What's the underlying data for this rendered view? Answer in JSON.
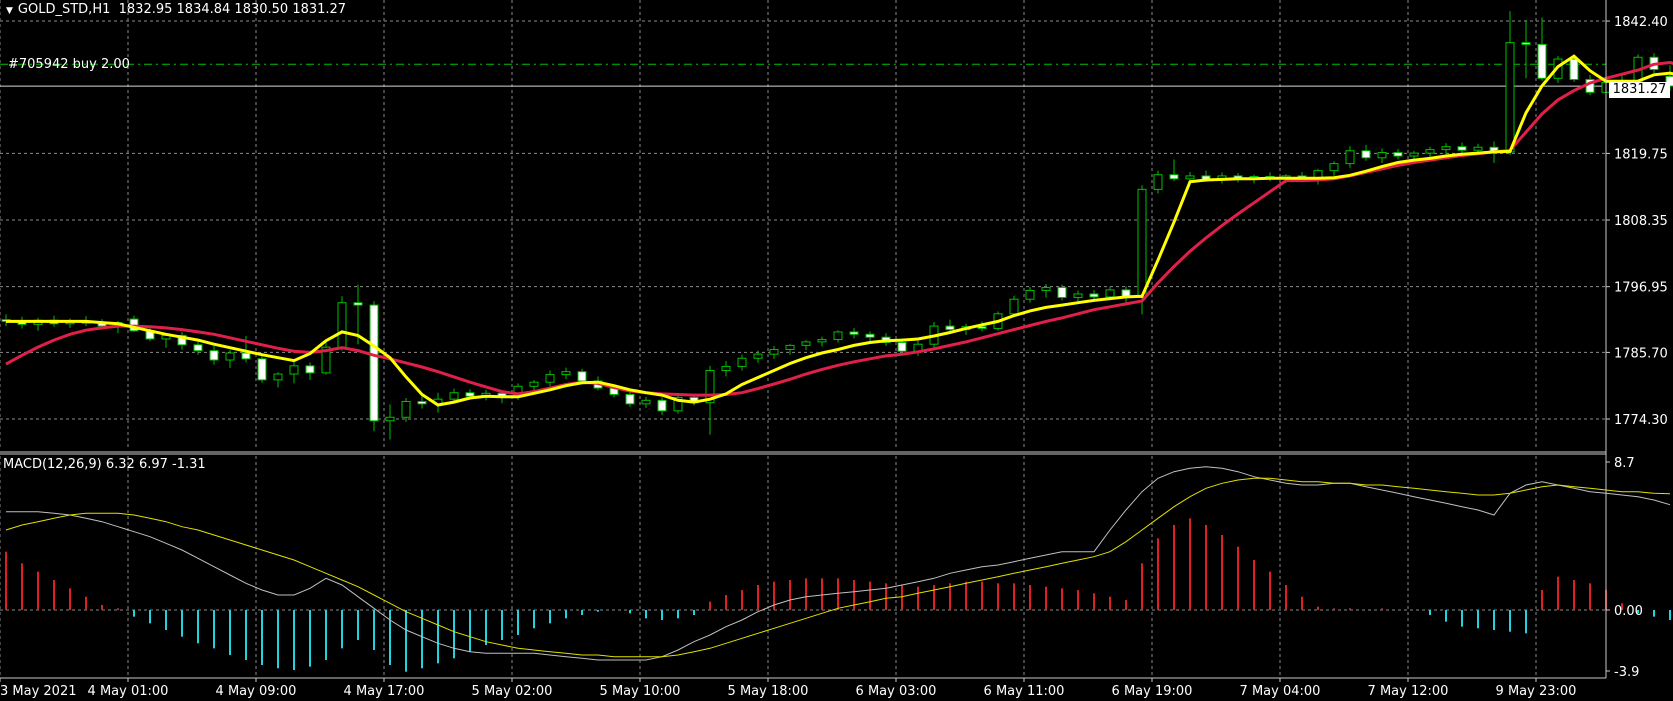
{
  "header": {
    "symbol": "GOLD_STD,H1",
    "ohlc": "1832.95 1834.84 1830.50 1831.27"
  },
  "order_label": "#705942 buy 2.00",
  "current_price_tag": "1831.27",
  "colors": {
    "background": "#000000",
    "grid": "#8a8a8a",
    "bull_candle": "#00c000",
    "bear_candle_body": "#ffffff",
    "fast_ma": "#ffff00",
    "slow_ma": "#e0204a",
    "macd_line": "#c0c0c0",
    "signal_line": "#e0e000",
    "hist_positive": "#e02020",
    "hist_negative": "#22d3e0",
    "order_line": "#00c000"
  },
  "price_axis": {
    "labels": [
      "1842.40",
      "1831.27",
      "1819.75",
      "1808.35",
      "1796.95",
      "1785.70",
      "1774.30"
    ]
  },
  "macd_panel": {
    "title": "MACD(12,26,9) 6.32 6.97 -1.31",
    "axis_labels": [
      "8.7",
      "0.00",
      "-3.9"
    ]
  },
  "time_axis": {
    "labels": [
      "3 May 2021",
      "4 May 01:00",
      "4 May 09:00",
      "4 May 17:00",
      "5 May 02:00",
      "5 May 10:00",
      "5 May 18:00",
      "6 May 03:00",
      "6 May 11:00",
      "6 May 19:00",
      "7 May 04:00",
      "7 May 12:00",
      "9 May 23:00"
    ]
  },
  "chart_data": {
    "type": "candlestick",
    "symbol": "GOLD_STD",
    "timeframe": "H1",
    "price_range": [
      1769,
      1846
    ],
    "order_level": 1835.0,
    "candles": [
      {
        "o": 1791.3,
        "h": 1792.2,
        "l": 1790.2,
        "c": 1791.0
      },
      {
        "o": 1791.0,
        "h": 1791.8,
        "l": 1789.8,
        "c": 1790.5
      },
      {
        "o": 1790.5,
        "h": 1791.6,
        "l": 1789.4,
        "c": 1791.2
      },
      {
        "o": 1791.2,
        "h": 1792.0,
        "l": 1790.1,
        "c": 1790.6
      },
      {
        "o": 1790.6,
        "h": 1791.5,
        "l": 1789.9,
        "c": 1791.1
      },
      {
        "o": 1791.1,
        "h": 1791.9,
        "l": 1790.2,
        "c": 1790.7
      },
      {
        "o": 1790.7,
        "h": 1791.4,
        "l": 1789.6,
        "c": 1790.2
      },
      {
        "o": 1790.2,
        "h": 1791.1,
        "l": 1789.0,
        "c": 1790.8
      },
      {
        "o": 1791.4,
        "h": 1792.0,
        "l": 1789.2,
        "c": 1789.4
      },
      {
        "o": 1789.4,
        "h": 1790.1,
        "l": 1787.6,
        "c": 1788.0
      },
      {
        "o": 1788.0,
        "h": 1789.0,
        "l": 1786.5,
        "c": 1788.6
      },
      {
        "o": 1788.6,
        "h": 1789.2,
        "l": 1786.2,
        "c": 1787.0
      },
      {
        "o": 1787.0,
        "h": 1787.9,
        "l": 1785.3,
        "c": 1786.0
      },
      {
        "o": 1786.0,
        "h": 1786.8,
        "l": 1783.6,
        "c": 1784.4
      },
      {
        "o": 1784.4,
        "h": 1786.1,
        "l": 1783.0,
        "c": 1785.6
      },
      {
        "o": 1785.6,
        "h": 1788.5,
        "l": 1784.0,
        "c": 1784.6
      },
      {
        "o": 1784.6,
        "h": 1785.2,
        "l": 1780.5,
        "c": 1781.0
      },
      {
        "o": 1781.0,
        "h": 1782.3,
        "l": 1779.7,
        "c": 1782.0
      },
      {
        "o": 1782.0,
        "h": 1784.1,
        "l": 1780.4,
        "c": 1783.4
      },
      {
        "o": 1783.4,
        "h": 1784.0,
        "l": 1781.0,
        "c": 1782.2
      },
      {
        "o": 1782.2,
        "h": 1787.4,
        "l": 1781.9,
        "c": 1786.6
      },
      {
        "o": 1786.6,
        "h": 1795.3,
        "l": 1786.0,
        "c": 1794.2
      },
      {
        "o": 1794.2,
        "h": 1797.3,
        "l": 1787.1,
        "c": 1793.8
      },
      {
        "o": 1793.8,
        "h": 1794.5,
        "l": 1772.2,
        "c": 1774.0
      },
      {
        "o": 1774.0,
        "h": 1776.8,
        "l": 1770.8,
        "c": 1774.6
      },
      {
        "o": 1774.6,
        "h": 1777.9,
        "l": 1773.8,
        "c": 1777.3
      },
      {
        "o": 1777.3,
        "h": 1778.2,
        "l": 1776.1,
        "c": 1776.9
      },
      {
        "o": 1776.9,
        "h": 1778.8,
        "l": 1775.4,
        "c": 1777.7
      },
      {
        "o": 1777.7,
        "h": 1779.5,
        "l": 1777.1,
        "c": 1778.8
      },
      {
        "o": 1778.8,
        "h": 1779.4,
        "l": 1777.6,
        "c": 1778.2
      },
      {
        "o": 1778.2,
        "h": 1779.3,
        "l": 1777.5,
        "c": 1778.7
      },
      {
        "o": 1778.7,
        "h": 1779.2,
        "l": 1777.0,
        "c": 1778.1
      },
      {
        "o": 1778.1,
        "h": 1780.4,
        "l": 1777.6,
        "c": 1779.9
      },
      {
        "o": 1779.9,
        "h": 1781.0,
        "l": 1778.7,
        "c": 1780.6
      },
      {
        "o": 1780.6,
        "h": 1782.6,
        "l": 1779.9,
        "c": 1781.9
      },
      {
        "o": 1781.9,
        "h": 1783.1,
        "l": 1781.1,
        "c": 1782.4
      },
      {
        "o": 1782.4,
        "h": 1782.9,
        "l": 1780.3,
        "c": 1780.8
      },
      {
        "o": 1780.8,
        "h": 1781.6,
        "l": 1779.2,
        "c": 1779.6
      },
      {
        "o": 1779.6,
        "h": 1780.1,
        "l": 1778.0,
        "c": 1778.5
      },
      {
        "o": 1778.5,
        "h": 1779.0,
        "l": 1776.4,
        "c": 1776.9
      },
      {
        "o": 1776.9,
        "h": 1778.1,
        "l": 1776.2,
        "c": 1777.5
      },
      {
        "o": 1777.5,
        "h": 1778.0,
        "l": 1775.0,
        "c": 1775.7
      },
      {
        "o": 1775.7,
        "h": 1778.6,
        "l": 1775.2,
        "c": 1778.0
      },
      {
        "o": 1778.0,
        "h": 1778.6,
        "l": 1776.6,
        "c": 1777.1
      },
      {
        "o": 1777.1,
        "h": 1783.4,
        "l": 1771.6,
        "c": 1782.6
      },
      {
        "o": 1782.6,
        "h": 1784.2,
        "l": 1781.6,
        "c": 1783.3
      },
      {
        "o": 1783.3,
        "h": 1785.3,
        "l": 1782.6,
        "c": 1784.7
      },
      {
        "o": 1784.7,
        "h": 1786.0,
        "l": 1783.9,
        "c": 1785.4
      },
      {
        "o": 1785.4,
        "h": 1786.8,
        "l": 1784.6,
        "c": 1786.2
      },
      {
        "o": 1786.2,
        "h": 1787.1,
        "l": 1785.3,
        "c": 1786.9
      },
      {
        "o": 1786.9,
        "h": 1787.8,
        "l": 1786.1,
        "c": 1787.5
      },
      {
        "o": 1787.5,
        "h": 1788.4,
        "l": 1786.7,
        "c": 1787.9
      },
      {
        "o": 1787.9,
        "h": 1789.5,
        "l": 1787.4,
        "c": 1789.2
      },
      {
        "o": 1789.2,
        "h": 1789.9,
        "l": 1788.1,
        "c": 1788.8
      },
      {
        "o": 1788.8,
        "h": 1789.3,
        "l": 1787.6,
        "c": 1788.3
      },
      {
        "o": 1788.3,
        "h": 1789.0,
        "l": 1786.8,
        "c": 1787.4
      },
      {
        "o": 1787.4,
        "h": 1788.1,
        "l": 1785.4,
        "c": 1785.9
      },
      {
        "o": 1785.9,
        "h": 1787.7,
        "l": 1785.1,
        "c": 1787.1
      },
      {
        "o": 1787.1,
        "h": 1790.9,
        "l": 1786.4,
        "c": 1790.2
      },
      {
        "o": 1790.2,
        "h": 1791.3,
        "l": 1789.0,
        "c": 1789.6
      },
      {
        "o": 1789.6,
        "h": 1790.6,
        "l": 1788.7,
        "c": 1790.1
      },
      {
        "o": 1790.1,
        "h": 1791.0,
        "l": 1789.3,
        "c": 1789.8
      },
      {
        "o": 1789.8,
        "h": 1792.7,
        "l": 1789.4,
        "c": 1792.3
      },
      {
        "o": 1792.3,
        "h": 1795.4,
        "l": 1791.9,
        "c": 1794.8
      },
      {
        "o": 1794.8,
        "h": 1796.9,
        "l": 1794.2,
        "c": 1796.3
      },
      {
        "o": 1796.3,
        "h": 1797.4,
        "l": 1795.1,
        "c": 1796.8
      },
      {
        "o": 1796.8,
        "h": 1797.3,
        "l": 1794.6,
        "c": 1795.1
      },
      {
        "o": 1795.1,
        "h": 1796.3,
        "l": 1794.2,
        "c": 1795.7
      },
      {
        "o": 1795.7,
        "h": 1796.4,
        "l": 1794.6,
        "c": 1795.2
      },
      {
        "o": 1795.2,
        "h": 1797.0,
        "l": 1794.6,
        "c": 1796.4
      },
      {
        "o": 1796.4,
        "h": 1797.0,
        "l": 1794.1,
        "c": 1795.1
      },
      {
        "o": 1795.1,
        "h": 1814.3,
        "l": 1792.2,
        "c": 1813.6
      },
      {
        "o": 1813.6,
        "h": 1816.8,
        "l": 1812.9,
        "c": 1816.1
      },
      {
        "o": 1816.1,
        "h": 1818.7,
        "l": 1815.0,
        "c": 1815.4
      },
      {
        "o": 1815.4,
        "h": 1816.6,
        "l": 1814.4,
        "c": 1815.9
      },
      {
        "o": 1815.9,
        "h": 1816.8,
        "l": 1814.9,
        "c": 1815.3
      },
      {
        "o": 1815.3,
        "h": 1816.5,
        "l": 1814.6,
        "c": 1815.9
      },
      {
        "o": 1815.9,
        "h": 1816.4,
        "l": 1814.8,
        "c": 1815.4
      },
      {
        "o": 1815.4,
        "h": 1816.1,
        "l": 1814.6,
        "c": 1815.8
      },
      {
        "o": 1815.8,
        "h": 1816.5,
        "l": 1815.0,
        "c": 1815.4
      },
      {
        "o": 1815.4,
        "h": 1816.2,
        "l": 1814.7,
        "c": 1815.9
      },
      {
        "o": 1815.9,
        "h": 1816.6,
        "l": 1815.2,
        "c": 1815.6
      },
      {
        "o": 1815.6,
        "h": 1817.1,
        "l": 1814.4,
        "c": 1816.8
      },
      {
        "o": 1816.8,
        "h": 1818.4,
        "l": 1815.9,
        "c": 1818.0
      },
      {
        "o": 1818.0,
        "h": 1821.0,
        "l": 1817.3,
        "c": 1820.2
      },
      {
        "o": 1820.2,
        "h": 1821.2,
        "l": 1818.5,
        "c": 1819.0
      },
      {
        "o": 1819.0,
        "h": 1820.6,
        "l": 1818.1,
        "c": 1819.9
      },
      {
        "o": 1819.9,
        "h": 1820.5,
        "l": 1818.7,
        "c": 1819.3
      },
      {
        "o": 1819.3,
        "h": 1820.2,
        "l": 1818.2,
        "c": 1819.8
      },
      {
        "o": 1819.8,
        "h": 1820.9,
        "l": 1818.9,
        "c": 1820.4
      },
      {
        "o": 1820.4,
        "h": 1821.5,
        "l": 1819.6,
        "c": 1820.9
      },
      {
        "o": 1820.9,
        "h": 1821.6,
        "l": 1819.8,
        "c": 1820.3
      },
      {
        "o": 1820.3,
        "h": 1821.4,
        "l": 1819.5,
        "c": 1820.8
      },
      {
        "o": 1820.8,
        "h": 1821.8,
        "l": 1818.1,
        "c": 1820.0
      },
      {
        "o": 1820.0,
        "h": 1844.1,
        "l": 1819.5,
        "c": 1838.7
      },
      {
        "o": 1838.7,
        "h": 1842.6,
        "l": 1832.6,
        "c": 1838.4
      },
      {
        "o": 1838.4,
        "h": 1843.0,
        "l": 1832.2,
        "c": 1832.6
      },
      {
        "o": 1832.6,
        "h": 1836.4,
        "l": 1831.8,
        "c": 1835.9
      },
      {
        "o": 1835.9,
        "h": 1836.6,
        "l": 1832.0,
        "c": 1832.4
      },
      {
        "o": 1832.4,
        "h": 1833.2,
        "l": 1829.7,
        "c": 1830.2
      },
      {
        "o": 1830.2,
        "h": 1832.6,
        "l": 1829.4,
        "c": 1831.9
      },
      {
        "o": 1831.9,
        "h": 1833.3,
        "l": 1830.6,
        "c": 1831.0
      },
      {
        "o": 1831.0,
        "h": 1836.7,
        "l": 1830.4,
        "c": 1836.2
      },
      {
        "o": 1836.2,
        "h": 1836.9,
        "l": 1833.5,
        "c": 1834.1
      },
      {
        "o": 1832.95,
        "h": 1834.84,
        "l": 1830.5,
        "c": 1831.27
      }
    ],
    "ma_fast": [
      1791,
      1791,
      1791,
      1791,
      1791,
      1791,
      1790.8,
      1790.6,
      1790,
      1789.4,
      1788.8,
      1788.3,
      1787.8,
      1787.1,
      1786.5,
      1785.9,
      1785.3,
      1784.8,
      1784.3,
      1785.5,
      1787.7,
      1789.2,
      1788.6,
      1786.8,
      1784.8,
      1781.5,
      1778.5,
      1776.7,
      1777.2,
      1777.9,
      1778.2,
      1778.1,
      1778.1,
      1778.7,
      1779.3,
      1780,
      1780.5,
      1780.6,
      1780,
      1779.3,
      1778.8,
      1778.4,
      1777.5,
      1777.2,
      1777.7,
      1778.6,
      1780.2,
      1781.4,
      1782.6,
      1783.8,
      1784.8,
      1785.6,
      1786.2,
      1786.9,
      1787.4,
      1787.7,
      1787.8,
      1788,
      1788.5,
      1789.1,
      1789.8,
      1790.4,
      1791,
      1792,
      1792.8,
      1793.4,
      1793.8,
      1794.2,
      1794.6,
      1794.9,
      1795.2,
      1795.3,
      1801.5,
      1808,
      1814.9,
      1815.2,
      1815.3,
      1815.4,
      1815.4,
      1815.5,
      1815.5,
      1815.5,
      1815.5,
      1815.6,
      1816,
      1816.7,
      1817.5,
      1818.2,
      1818.6,
      1818.9,
      1819.3,
      1819.6,
      1819.8,
      1820,
      1820.1,
      1826.7,
      1831.3,
      1834.6,
      1836.4,
      1833.9,
      1832.1,
      1832.1,
      1832.1,
      1833.2,
      1833.5,
      1832.8
    ],
    "ma_slow": [
      1783.7,
      1785.2,
      1786.6,
      1787.8,
      1788.8,
      1789.5,
      1789.9,
      1790.2,
      1790.2,
      1790.1,
      1789.9,
      1789.6,
      1789.2,
      1788.8,
      1788.2,
      1787.6,
      1787,
      1786.4,
      1785.9,
      1785.7,
      1786,
      1786.5,
      1786,
      1785.2,
      1784.6,
      1783.9,
      1783.2,
      1782.4,
      1781.5,
      1780.6,
      1779.8,
      1779,
      1778.6,
      1779,
      1779.6,
      1780.2,
      1780.6,
      1780.4,
      1779.7,
      1779.1,
      1778.8,
      1778.6,
      1778.5,
      1778.4,
      1778.4,
      1778.5,
      1778.8,
      1779.5,
      1780.3,
      1781.1,
      1782,
      1782.8,
      1783.5,
      1784.1,
      1784.6,
      1785.1,
      1785.4,
      1785.8,
      1786.3,
      1786.9,
      1787.5,
      1788.2,
      1788.9,
      1789.6,
      1790.3,
      1791,
      1791.6,
      1792.3,
      1793,
      1793.5,
      1794,
      1794.5,
      1797.6,
      1800.4,
      1803,
      1805.3,
      1807.4,
      1809.4,
      1811.3,
      1813.2,
      1815.1,
      1815.1,
      1815.2,
      1815.4,
      1815.9,
      1816.5,
      1817.1,
      1817.7,
      1818.2,
      1818.6,
      1819,
      1819.4,
      1819.7,
      1820,
      1820.3,
      1823.4,
      1826.5,
      1828.9,
      1830.5,
      1831.8,
      1832.6,
      1833.3,
      1834,
      1835,
      1835.3,
      1834.6
    ],
    "macd": {
      "params": [
        12,
        26,
        9
      ],
      "current": {
        "macd": 6.32,
        "signal": 6.97,
        "histogram": -1.31
      },
      "range": [
        -3.9,
        8.7
      ],
      "histogram": [
        3.5,
        2.8,
        2.3,
        1.8,
        1.3,
        0.8,
        0.3,
        0.1,
        -0.4,
        -0.8,
        -1.2,
        -1.6,
        -2,
        -2.3,
        -2.7,
        -3,
        -3.3,
        -3.5,
        -3.6,
        -3.4,
        -3,
        -2.3,
        -1.8,
        -2.4,
        -3.3,
        -3.7,
        -3.5,
        -3.2,
        -2.9,
        -2.5,
        -2.1,
        -1.8,
        -1.5,
        -1.1,
        -0.8,
        -0.5,
        -0.3,
        -0.1,
        0,
        -0.2,
        -0.5,
        -0.6,
        -0.5,
        -0.3,
        0.5,
        0.9,
        1.2,
        1.5,
        1.7,
        1.8,
        1.9,
        1.9,
        1.9,
        1.8,
        1.7,
        1.6,
        1.5,
        1.4,
        1.5,
        1.6,
        1.7,
        1.7,
        1.6,
        1.6,
        1.5,
        1.4,
        1.3,
        1.2,
        1.0,
        0.8,
        0.6,
        2.8,
        4.3,
        5.1,
        5.5,
        5.1,
        4.5,
        3.8,
        3.0,
        2.3,
        1.5,
        0.8,
        0.2,
        0.1,
        0.1,
        0,
        0.1,
        0,
        0,
        -0.3,
        -0.7,
        -1.0,
        -1.1,
        -1.2,
        -1.3,
        -1.4,
        1.2,
        2.0,
        1.8,
        1.6,
        1.2,
        0.4,
        -0.2,
        -0.4,
        -0.6,
        -0.9,
        -1.31
      ],
      "macd_line": [
        5.9,
        5.9,
        5.9,
        5.8,
        5.7,
        5.5,
        5.3,
        5.0,
        4.7,
        4.4,
        4.0,
        3.6,
        3.1,
        2.6,
        2.1,
        1.6,
        1.2,
        0.9,
        0.9,
        1.3,
        1.9,
        1.5,
        0.8,
        0.1,
        -0.6,
        -1.2,
        -1.6,
        -2.0,
        -2.3,
        -2.5,
        -2.6,
        -2.6,
        -2.6,
        -2.6,
        -2.7,
        -2.8,
        -2.9,
        -3.0,
        -3.0,
        -3.0,
        -3.0,
        -2.8,
        -2.4,
        -1.9,
        -1.5,
        -1.0,
        -0.6,
        -0.1,
        0.3,
        0.6,
        0.8,
        0.9,
        1.0,
        1.1,
        1.2,
        1.3,
        1.5,
        1.7,
        1.9,
        2.2,
        2.4,
        2.6,
        2.7,
        2.9,
        3.1,
        3.3,
        3.5,
        3.5,
        3.5,
        4.8,
        6.0,
        7.1,
        7.9,
        8.3,
        8.5,
        8.6,
        8.5,
        8.3,
        8.0,
        7.8,
        7.6,
        7.5,
        7.5,
        7.6,
        7.6,
        7.4,
        7.2,
        7.0,
        6.8,
        6.6,
        6.4,
        6.2,
        6.0,
        5.7,
        7.0,
        7.5,
        7.7,
        7.5,
        7.3,
        7.1,
        7.0,
        6.9,
        6.8,
        6.6,
        6.32
      ],
      "signal_line": [
        4.8,
        5.1,
        5.3,
        5.5,
        5.7,
        5.8,
        5.8,
        5.8,
        5.7,
        5.5,
        5.3,
        5.0,
        4.8,
        4.5,
        4.2,
        3.9,
        3.6,
        3.3,
        3.0,
        2.6,
        2.2,
        1.8,
        1.4,
        0.9,
        0.4,
        -0.1,
        -0.5,
        -0.9,
        -1.3,
        -1.6,
        -1.9,
        -2.1,
        -2.3,
        -2.4,
        -2.5,
        -2.6,
        -2.7,
        -2.7,
        -2.8,
        -2.8,
        -2.8,
        -2.8,
        -2.7,
        -2.5,
        -2.3,
        -2.0,
        -1.7,
        -1.4,
        -1.1,
        -0.8,
        -0.5,
        -0.2,
        0.1,
        0.3,
        0.5,
        0.7,
        0.8,
        1.0,
        1.2,
        1.4,
        1.6,
        1.8,
        2.0,
        2.2,
        2.4,
        2.6,
        2.8,
        3.0,
        3.2,
        3.5,
        4.1,
        4.8,
        5.5,
        6.2,
        6.8,
        7.3,
        7.6,
        7.8,
        7.9,
        7.9,
        7.8,
        7.7,
        7.7,
        7.6,
        7.6,
        7.5,
        7.5,
        7.4,
        7.3,
        7.2,
        7.1,
        7.0,
        6.9,
        6.9,
        7.0,
        7.2,
        7.4,
        7.5,
        7.4,
        7.3,
        7.2,
        7.1,
        7.1,
        7.0,
        6.97
      ]
    }
  }
}
